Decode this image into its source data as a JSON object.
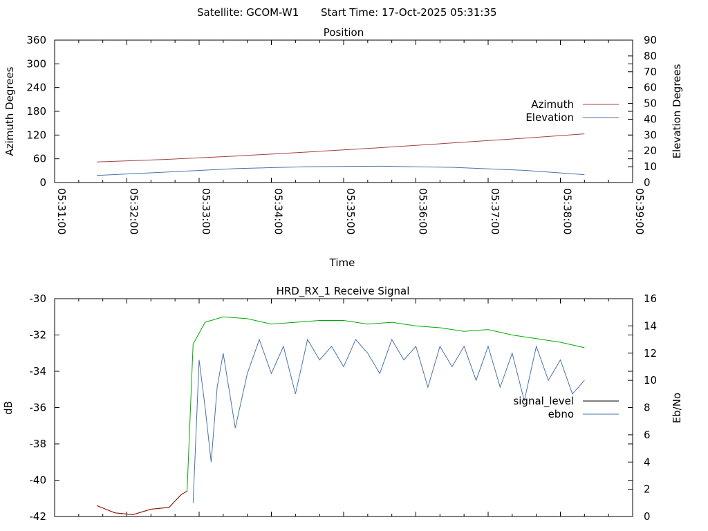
{
  "header": {
    "satellite": "Satellite: GCOM-W1",
    "start_time": "Start Time: 17-Oct-2025 05:31:35"
  },
  "colors": {
    "azimuth": "#a04040",
    "elevation": "#4872a8",
    "signal_level": "#000000",
    "ebno": "#4872a8",
    "dB_trace": "#a00000",
    "green_trace": "#00aa00"
  },
  "chart_data": [
    {
      "type": "line",
      "title": "Position",
      "xlabel": "Time",
      "ylabel": "Azimuth Degrees",
      "y2label": "Elevation Degrees",
      "x_ticks": [
        "05:31:00",
        "05:32:00",
        "05:33:00",
        "05:34:00",
        "05:35:00",
        "05:36:00",
        "05:37:00",
        "05:38:00",
        "05:39:00"
      ],
      "xlim_seconds_of_hour": [
        1860,
        2340
      ],
      "ylim": [
        0,
        360
      ],
      "y_ticks": [
        "0",
        "60",
        "120",
        "180",
        "240",
        "300",
        "360"
      ],
      "y2lim": [
        0,
        90
      ],
      "y2_ticks": [
        "0",
        "10",
        "20",
        "30",
        "40",
        "50",
        "60",
        "70",
        "80",
        "90"
      ],
      "legend_placement": "right",
      "series": [
        {
          "name": "Azimuth",
          "axis": "y",
          "x": [
            "05:31:35",
            "05:32:30",
            "05:33:30",
            "05:34:30",
            "05:35:30",
            "05:36:30",
            "05:37:30",
            "05:38:20"
          ],
          "values": [
            52,
            58,
            67,
            77,
            88,
            100,
            112,
            123
          ]
        },
        {
          "name": "Elevation",
          "axis": "y2",
          "x": [
            "05:31:35",
            "05:32:30",
            "05:33:30",
            "05:34:30",
            "05:35:30",
            "05:36:30",
            "05:37:30",
            "05:38:20"
          ],
          "values": [
            4.5,
            6.5,
            8.8,
            10.0,
            10.3,
            9.6,
            7.7,
            5.0
          ]
        }
      ]
    },
    {
      "type": "line",
      "title": "HRD_RX_1 Receive Signal",
      "ylabel": "dB",
      "y2label": "Eb/No",
      "xlim_seconds_of_hour": [
        1860,
        2340
      ],
      "ylim": [
        -42,
        -30
      ],
      "y_ticks": [
        "-42",
        "-40",
        "-38",
        "-36",
        "-34",
        "-32",
        "-30"
      ],
      "y2lim": [
        0,
        16
      ],
      "y2_ticks": [
        "0",
        "2",
        "4",
        "6",
        "8",
        "10",
        "12",
        "14",
        "16"
      ],
      "legend_placement": "right",
      "series": [
        {
          "name": "signal_level",
          "axis": "y",
          "x": [
            "05:31:35",
            "05:31:50",
            "05:32:05",
            "05:32:20",
            "05:32:35",
            "05:32:45",
            "05:32:50",
            "05:32:55",
            "05:33:05",
            "05:33:20",
            "05:33:40",
            "05:34:00",
            "05:34:20",
            "05:34:40",
            "05:35:00",
            "05:35:20",
            "05:35:40",
            "05:36:00",
            "05:36:20",
            "05:36:40",
            "05:37:00",
            "05:37:20",
            "05:37:40",
            "05:38:00",
            "05:38:20"
          ],
          "values": [
            -41.4,
            -41.8,
            -41.9,
            -41.6,
            -41.5,
            -40.8,
            -40.6,
            -32.5,
            -31.3,
            -31.0,
            -31.1,
            -31.4,
            -31.3,
            -31.2,
            -31.2,
            -31.4,
            -31.3,
            -31.5,
            -31.6,
            -31.8,
            -31.7,
            -32.0,
            -32.2,
            -32.4,
            -32.7
          ]
        },
        {
          "name": "ebno",
          "axis": "y2",
          "x": [
            "05:32:55",
            "05:33:00",
            "05:33:05",
            "05:33:10",
            "05:33:15",
            "05:33:20",
            "05:33:30",
            "05:33:40",
            "05:33:50",
            "05:34:00",
            "05:34:10",
            "05:34:20",
            "05:34:30",
            "05:34:40",
            "05:34:50",
            "05:35:00",
            "05:35:10",
            "05:35:20",
            "05:35:30",
            "05:35:40",
            "05:35:50",
            "05:36:00",
            "05:36:10",
            "05:36:20",
            "05:36:30",
            "05:36:40",
            "05:36:50",
            "05:37:00",
            "05:37:10",
            "05:37:20",
            "05:37:30",
            "05:37:40",
            "05:37:50",
            "05:38:00",
            "05:38:10",
            "05:38:20"
          ],
          "values": [
            1.0,
            11.5,
            8.0,
            4.0,
            9.5,
            12.0,
            6.5,
            10.5,
            13.0,
            10.5,
            12.5,
            9.0,
            13.0,
            11.5,
            12.5,
            11.0,
            13.0,
            12.0,
            10.5,
            13.0,
            11.5,
            12.5,
            9.5,
            12.5,
            11.0,
            12.5,
            10.0,
            12.5,
            9.5,
            12.0,
            8.5,
            12.5,
            10.0,
            11.5,
            9.0,
            10.0
          ]
        }
      ]
    }
  ]
}
